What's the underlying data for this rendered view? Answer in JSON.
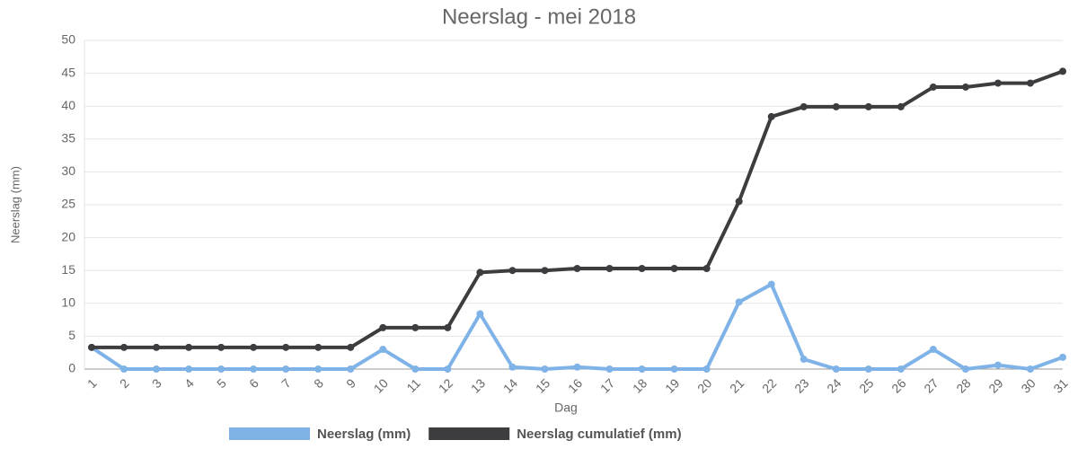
{
  "chart_data": {
    "type": "line",
    "title": "Neerslag - mei 2018",
    "x_label": "Dag",
    "y_label": "Neerslag (mm)",
    "categories": [
      "1",
      "2",
      "3",
      "4",
      "5",
      "6",
      "7",
      "8",
      "9",
      "10",
      "11",
      "12",
      "13",
      "14",
      "15",
      "16",
      "17",
      "18",
      "19",
      "20",
      "21",
      "22",
      "23",
      "24",
      "25",
      "26",
      "27",
      "28",
      "29",
      "30",
      "31"
    ],
    "series": [
      {
        "name": "Neerslag (mm)",
        "color": "#7fb3e8",
        "values": [
          3.3,
          0,
          0,
          0,
          0,
          0,
          0,
          0,
          0,
          3.0,
          0,
          0,
          8.4,
          0.3,
          0,
          0.3,
          0,
          0,
          0,
          0,
          10.2,
          12.9,
          1.5,
          0,
          0,
          0,
          3.0,
          0,
          0.6,
          0,
          1.8
        ]
      },
      {
        "name": "Neerslag cumulatief (mm)",
        "color": "#3d3d40",
        "values": [
          3.3,
          3.3,
          3.3,
          3.3,
          3.3,
          3.3,
          3.3,
          3.3,
          3.3,
          6.3,
          6.3,
          6.3,
          14.7,
          15.0,
          15.0,
          15.3,
          15.3,
          15.3,
          15.3,
          15.3,
          25.5,
          38.4,
          39.9,
          39.9,
          39.9,
          39.9,
          42.9,
          42.9,
          43.5,
          43.5,
          45.3
        ]
      }
    ],
    "ylim": [
      0,
      50
    ],
    "yticks": [
      0,
      5,
      10,
      15,
      20,
      25,
      30,
      35,
      40,
      45,
      50
    ],
    "grid": true,
    "legend": "bottom"
  }
}
